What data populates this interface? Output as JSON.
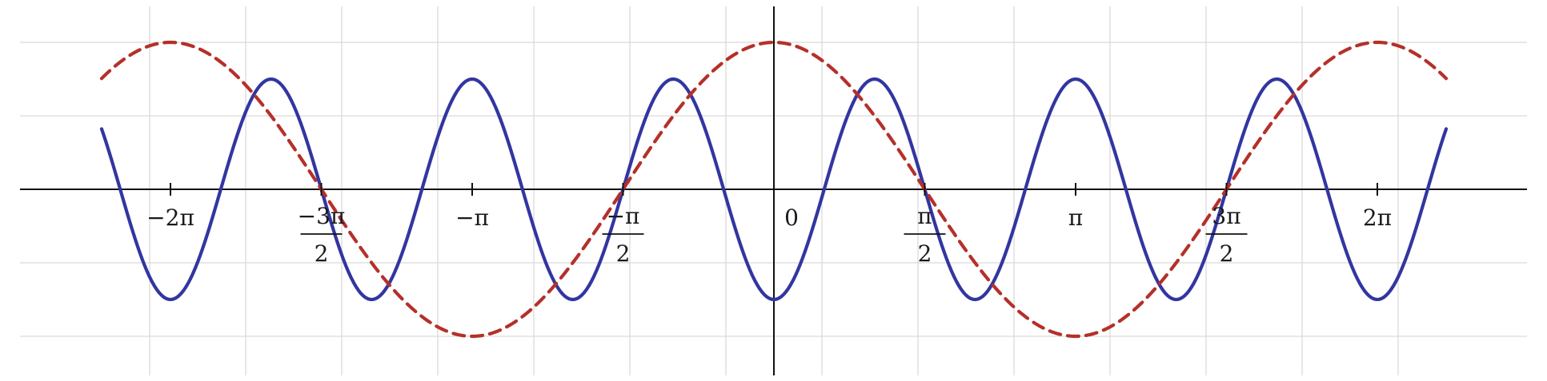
{
  "chart_data": {
    "type": "line",
    "title": "",
    "xlabel": "",
    "ylabel": "",
    "xlim": [
      -7.03,
      7.03
    ],
    "ylim": [
      -1.25,
      2.0
    ],
    "grid": true,
    "legend": "none",
    "x_gridlines": [
      -6.5,
      -5.5,
      -4.5,
      -3.5,
      -2.5,
      -1.5,
      -0.5,
      0.5,
      1.5,
      2.5,
      3.5,
      4.5,
      5.5,
      6.5
    ],
    "y_gridlines": [
      -1.0,
      -0.5,
      0.5,
      1.0
    ],
    "x_ticks": [
      {
        "value": -6.2832,
        "num": "−2π",
        "den": ""
      },
      {
        "value": -4.7124,
        "num": "−3π",
        "den": "2"
      },
      {
        "value": -3.1416,
        "num": "−π",
        "den": ""
      },
      {
        "value": -1.5708,
        "num": "−π",
        "den": "2"
      },
      {
        "value": 0,
        "num": "0",
        "den": ""
      },
      {
        "value": 1.5708,
        "num": "π",
        "den": "2"
      },
      {
        "value": 3.1416,
        "num": "π",
        "den": ""
      },
      {
        "value": 4.7124,
        "num": "3π",
        "den": "2"
      },
      {
        "value": 6.2832,
        "num": "2π",
        "den": ""
      }
    ],
    "series": [
      {
        "function": "-0.75*cos(3x)",
        "color": "#3236a0",
        "style": "solid",
        "x_range": [
          -7.0,
          7.0
        ],
        "samples": 561
      },
      {
        "function": "cos(x)",
        "color": "#b5302a",
        "style": "dashed",
        "x_range": [
          -7.0,
          7.0
        ],
        "samples": 561
      }
    ]
  }
}
